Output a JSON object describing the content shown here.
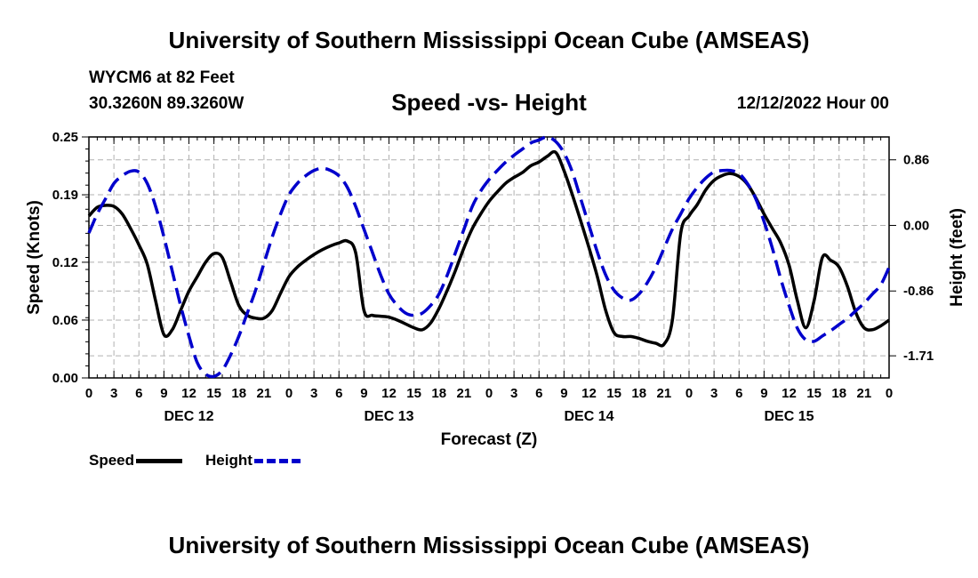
{
  "header": {
    "title": "University of Southern Mississippi Ocean Cube (AMSEAS)",
    "station": "WYCM6 at 82 Feet",
    "coords": "30.3260N  89.3260W",
    "subtitle": "Speed -vs- Height",
    "datetime": "12/12/2022 Hour 00"
  },
  "footer": {
    "title": "University of Southern Mississippi Ocean Cube (AMSEAS)"
  },
  "legend": {
    "speed": "Speed",
    "height": "Height"
  },
  "colors": {
    "speed": "#000000",
    "height": "#0000cc",
    "grid": "#b0b0b0"
  },
  "chart_data": {
    "type": "line",
    "xlabel": "Forecast (Z)",
    "ylabel_left": "Speed (Knots)",
    "ylabel_right": "Height (feet)",
    "x_range_hours": [
      0,
      96
    ],
    "x_tick_step_hours": 3,
    "x_tick_labels": [
      "0",
      "3",
      "6",
      "9",
      "12",
      "15",
      "18",
      "21",
      "0",
      "3",
      "6",
      "9",
      "12",
      "15",
      "18",
      "21",
      "0",
      "3",
      "6",
      "9",
      "12",
      "15",
      "18",
      "21",
      "0",
      "3",
      "6",
      "9",
      "12",
      "15",
      "18",
      "21",
      "0"
    ],
    "day_labels": [
      {
        "hour": 12,
        "label": "DEC 12"
      },
      {
        "hour": 36,
        "label": "DEC 13"
      },
      {
        "hour": 60,
        "label": "DEC 14"
      },
      {
        "hour": 84,
        "label": "DEC 15"
      }
    ],
    "y_left": {
      "range": [
        0,
        0.25
      ],
      "ticks": [
        0.0,
        0.06,
        0.12,
        0.19,
        0.25
      ],
      "tick_labels": [
        "0.00",
        "0.06",
        "0.12",
        "0.19",
        "0.25"
      ]
    },
    "y_right": {
      "range": [
        -2.0,
        1.16
      ],
      "ticks": [
        0.86,
        0.0,
        -0.86,
        -1.71
      ],
      "tick_labels": [
        "0.86",
        "0.00",
        "-0.86",
        "-1.71"
      ]
    },
    "series": [
      {
        "name": "Speed",
        "axis": "left",
        "style": "solid",
        "x": [
          0,
          1,
          2,
          3,
          4,
          5,
          6,
          7,
          8,
          9,
          10,
          11,
          12,
          13,
          14,
          15,
          16,
          17,
          18,
          19,
          20,
          21,
          22,
          23,
          24,
          25,
          26,
          27,
          28,
          29,
          30,
          31,
          32,
          33,
          34,
          35,
          36,
          37,
          38,
          39,
          40,
          41,
          42,
          43,
          44,
          45,
          46,
          47,
          48,
          49,
          50,
          51,
          52,
          53,
          54,
          55,
          56,
          57,
          58,
          59,
          60,
          61,
          62,
          63,
          64,
          65,
          66,
          67,
          68,
          69,
          70,
          71,
          72,
          73,
          74,
          75,
          76,
          77,
          78,
          79,
          80,
          81,
          82,
          83,
          84,
          85,
          86,
          87,
          88,
          89,
          90,
          91,
          92,
          93,
          94,
          95,
          96
        ],
        "values": [
          0.168,
          0.177,
          0.179,
          0.178,
          0.17,
          0.155,
          0.138,
          0.118,
          0.08,
          0.045,
          0.05,
          0.07,
          0.09,
          0.105,
          0.12,
          0.129,
          0.125,
          0.1,
          0.075,
          0.065,
          0.062,
          0.062,
          0.07,
          0.088,
          0.105,
          0.115,
          0.122,
          0.128,
          0.133,
          0.137,
          0.14,
          0.142,
          0.13,
          0.07,
          0.065,
          0.064,
          0.063,
          0.06,
          0.056,
          0.052,
          0.05,
          0.057,
          0.072,
          0.091,
          0.112,
          0.135,
          0.155,
          0.17,
          0.183,
          0.193,
          0.202,
          0.208,
          0.213,
          0.22,
          0.224,
          0.23,
          0.234,
          0.215,
          0.19,
          0.163,
          0.135,
          0.105,
          0.07,
          0.047,
          0.043,
          0.043,
          0.041,
          0.038,
          0.036,
          0.035,
          0.06,
          0.15,
          0.168,
          0.18,
          0.195,
          0.205,
          0.21,
          0.212,
          0.209,
          0.201,
          0.187,
          0.17,
          0.155,
          0.14,
          0.117,
          0.08,
          0.052,
          0.08,
          0.125,
          0.122,
          0.115,
          0.095,
          0.068,
          0.052,
          0.05,
          0.054,
          0.06
        ]
      },
      {
        "name": "Height",
        "axis": "right",
        "style": "dashed",
        "x": [
          0,
          1,
          2,
          3,
          4,
          5,
          6,
          7,
          8,
          9,
          10,
          11,
          12,
          13,
          14,
          15,
          16,
          17,
          18,
          19,
          20,
          21,
          22,
          23,
          24,
          25,
          26,
          27,
          28,
          29,
          30,
          31,
          32,
          33,
          34,
          35,
          36,
          37,
          38,
          39,
          40,
          41,
          42,
          43,
          44,
          45,
          46,
          47,
          48,
          49,
          50,
          51,
          52,
          53,
          54,
          55,
          56,
          57,
          58,
          59,
          60,
          61,
          62,
          63,
          64,
          65,
          66,
          67,
          68,
          69,
          70,
          71,
          72,
          73,
          74,
          75,
          76,
          77,
          78,
          79,
          80,
          81,
          82,
          83,
          84,
          85,
          86,
          87,
          88,
          89,
          90,
          91,
          92,
          93,
          94,
          95,
          96
        ],
        "values": [
          -0.1,
          0.15,
          0.35,
          0.55,
          0.65,
          0.71,
          0.7,
          0.55,
          0.25,
          -0.15,
          -0.6,
          -1.05,
          -1.45,
          -1.8,
          -1.95,
          -1.98,
          -1.9,
          -1.7,
          -1.45,
          -1.15,
          -0.85,
          -0.5,
          -0.15,
          0.15,
          0.4,
          0.55,
          0.65,
          0.72,
          0.75,
          0.72,
          0.65,
          0.5,
          0.25,
          -0.05,
          -0.35,
          -0.65,
          -0.9,
          -1.05,
          -1.15,
          -1.18,
          -1.15,
          -1.05,
          -0.9,
          -0.65,
          -0.35,
          -0.05,
          0.25,
          0.45,
          0.6,
          0.72,
          0.83,
          0.92,
          1.0,
          1.08,
          1.12,
          1.16,
          1.1,
          0.95,
          0.7,
          0.35,
          0.0,
          -0.35,
          -0.65,
          -0.85,
          -0.95,
          -0.98,
          -0.9,
          -0.75,
          -0.55,
          -0.3,
          -0.05,
          0.15,
          0.35,
          0.5,
          0.62,
          0.7,
          0.72,
          0.72,
          0.68,
          0.55,
          0.35,
          0.05,
          -0.3,
          -0.7,
          -1.05,
          -1.35,
          -1.5,
          -1.52,
          -1.45,
          -1.38,
          -1.3,
          -1.22,
          -1.12,
          -1.02,
          -0.9,
          -0.78,
          -0.55
        ]
      }
    ]
  }
}
